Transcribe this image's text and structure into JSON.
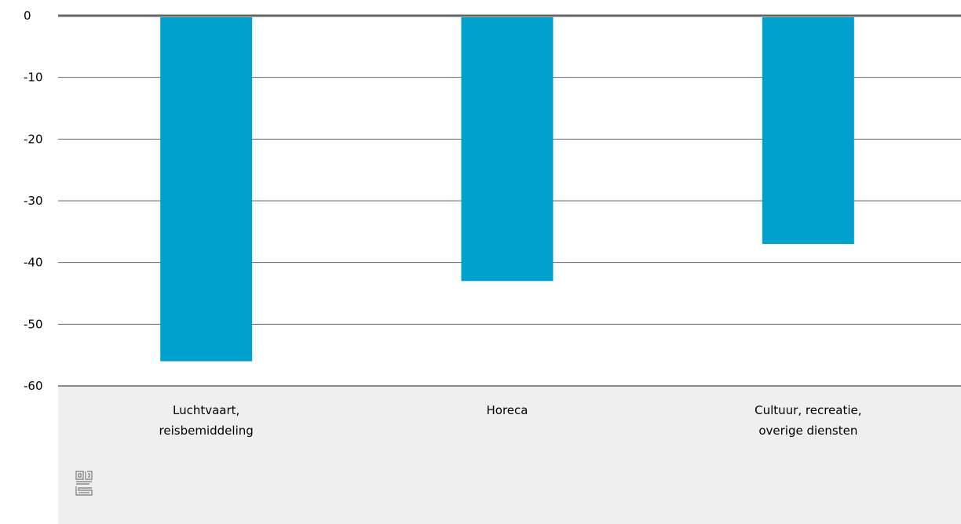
{
  "chart_data": {
    "type": "bar",
    "categories": [
      [
        "Luchtvaart,",
        "reisbemiddeling"
      ],
      [
        "Horeca"
      ],
      [
        "Cultuur, recreatie,",
        "overige diensten"
      ]
    ],
    "values": [
      -56,
      -43,
      -37
    ],
    "title": "",
    "xlabel": "",
    "ylabel": "",
    "ylim": [
      -60,
      0
    ],
    "yticks": [
      "0",
      "-10",
      "-20",
      "-30",
      "-40",
      "-50",
      "-60"
    ],
    "grid": true,
    "colors": {
      "bar": "#00a1cd",
      "zero_line": "#666666",
      "grid": "#666666",
      "category_band": "#efefef"
    }
  },
  "logo": {
    "name": "cbs-logo-icon",
    "text": "cbs"
  }
}
